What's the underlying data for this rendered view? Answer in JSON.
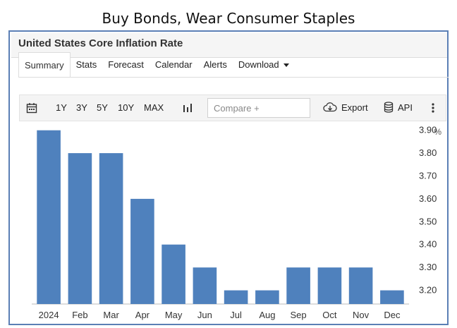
{
  "slide": {
    "title": "Buy Bonds, Wear Consumer Staples"
  },
  "panel": {
    "title": "United States Core Inflation Rate"
  },
  "tabs": [
    {
      "label": "Summary",
      "active": true
    },
    {
      "label": "Stats"
    },
    {
      "label": "Forecast"
    },
    {
      "label": "Calendar"
    },
    {
      "label": "Alerts"
    },
    {
      "label": "Download",
      "dropdown": true
    }
  ],
  "toolbar": {
    "calendar_icon": "calendar-icon",
    "ranges": [
      "1Y",
      "3Y",
      "5Y",
      "10Y",
      "MAX"
    ],
    "chart_type_icon": "bar-chart-icon",
    "compare_placeholder": "Compare +",
    "export_label": "Export",
    "export_icon": "cloud-download-icon",
    "api_label": "API",
    "api_icon": "database-icon",
    "more_icon": "vertical-dots-icon"
  },
  "colors": {
    "bar": "#4f81bd",
    "frame": "#5b7fb5"
  },
  "chart_data": {
    "type": "bar",
    "unit": "%",
    "categories": [
      "2024",
      "Feb",
      "Mar",
      "Apr",
      "May",
      "Jun",
      "Jul",
      "Aug",
      "Sep",
      "Oct",
      "Nov",
      "Dec"
    ],
    "values": [
      3.9,
      3.8,
      3.8,
      3.6,
      3.4,
      3.3,
      3.2,
      3.2,
      3.3,
      3.3,
      3.3,
      3.2
    ],
    "yticks": [
      "3.90",
      "3.80",
      "3.70",
      "3.60",
      "3.50",
      "3.40",
      "3.30",
      "3.20"
    ],
    "ylim": [
      3.14,
      3.93
    ],
    "yaxis_position": "right",
    "grid": false,
    "legend": "none"
  }
}
